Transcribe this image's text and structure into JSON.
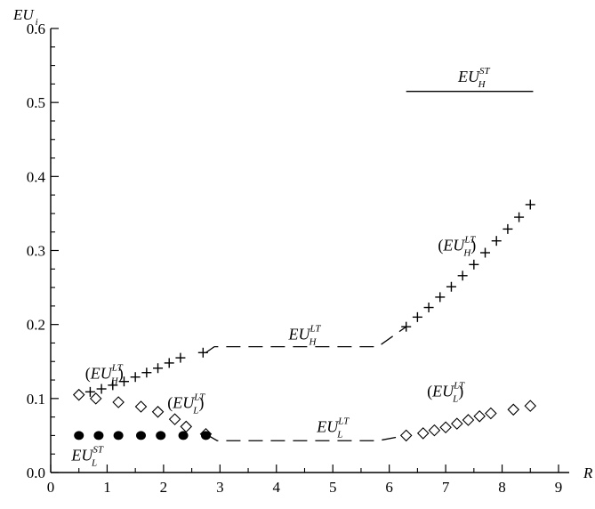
{
  "chart_data": {
    "type": "scatter",
    "xlabel": "R",
    "ylabel": "EU",
    "ylabel_sub": "i",
    "xlim": [
      0,
      9
    ],
    "ylim": [
      0,
      0.6
    ],
    "xticks": [
      "0",
      "1",
      "2",
      "3",
      "4",
      "5",
      "6",
      "7",
      "8",
      "9"
    ],
    "yticks": [
      "0.0",
      "0.1",
      "0.2",
      "0.3",
      "0.4",
      "0.5",
      "0.6"
    ],
    "grid": false,
    "series": [
      {
        "marker": "plus",
        "points": [
          [
            0.5,
            0.105
          ],
          [
            0.7,
            0.109
          ],
          [
            0.9,
            0.113
          ],
          [
            1.1,
            0.118
          ],
          [
            1.3,
            0.123
          ],
          [
            1.5,
            0.129
          ],
          [
            1.7,
            0.135
          ],
          [
            1.9,
            0.141
          ],
          [
            2.1,
            0.148
          ],
          [
            2.3,
            0.155
          ],
          [
            2.7,
            0.162
          ],
          [
            6.3,
            0.197
          ],
          [
            6.5,
            0.21
          ],
          [
            6.7,
            0.223
          ],
          [
            6.9,
            0.237
          ],
          [
            7.1,
            0.251
          ],
          [
            7.3,
            0.266
          ],
          [
            7.5,
            0.281
          ],
          [
            7.7,
            0.297
          ],
          [
            7.9,
            0.313
          ],
          [
            8.1,
            0.329
          ],
          [
            8.3,
            0.345
          ],
          [
            8.5,
            0.362
          ]
        ]
      },
      {
        "marker": "diamond",
        "points": [
          [
            0.5,
            0.105
          ],
          [
            0.8,
            0.1
          ],
          [
            1.2,
            0.095
          ],
          [
            1.6,
            0.089
          ],
          [
            1.9,
            0.082
          ],
          [
            2.2,
            0.072
          ],
          [
            2.4,
            0.062
          ],
          [
            2.75,
            0.052
          ],
          [
            6.3,
            0.05
          ],
          [
            6.6,
            0.053
          ],
          [
            6.8,
            0.057
          ],
          [
            7.0,
            0.061
          ],
          [
            7.2,
            0.066
          ],
          [
            7.4,
            0.071
          ],
          [
            7.6,
            0.076
          ],
          [
            7.8,
            0.08
          ],
          [
            8.2,
            0.085
          ],
          [
            8.5,
            0.09
          ]
        ]
      },
      {
        "marker": "dot",
        "points": [
          [
            0.5,
            0.05
          ],
          [
            0.85,
            0.05
          ],
          [
            1.2,
            0.05
          ],
          [
            1.6,
            0.05
          ],
          [
            1.95,
            0.05
          ],
          [
            2.35,
            0.05
          ],
          [
            2.75,
            0.05
          ]
        ]
      },
      {
        "style": "dashed",
        "points": [
          [
            2.75,
            0.162
          ],
          [
            2.9,
            0.17
          ],
          [
            5.8,
            0.17
          ],
          [
            6.3,
            0.197
          ]
        ]
      },
      {
        "style": "dashed",
        "points": [
          [
            2.75,
            0.052
          ],
          [
            2.95,
            0.043
          ],
          [
            5.8,
            0.043
          ],
          [
            6.3,
            0.05
          ]
        ]
      },
      {
        "style": "solid",
        "points": [
          [
            6.3,
            0.515
          ],
          [
            8.55,
            0.515
          ]
        ]
      }
    ],
    "annotations": [
      {
        "base": "EU",
        "sub": "H",
        "sup": "ST",
        "paren": false,
        "x": 7.5,
        "y": 0.528
      },
      {
        "base": "EU",
        "sub": "H",
        "sup": "LT",
        "paren": true,
        "x": 7.2,
        "y": 0.3
      },
      {
        "base": "EU",
        "sub": "H",
        "sup": "LT",
        "paren": false,
        "x": 4.5,
        "y": 0.18
      },
      {
        "base": "EU",
        "sub": "H",
        "sup": "LT",
        "paren": true,
        "x": 0.95,
        "y": 0.127
      },
      {
        "base": "EU",
        "sub": "L",
        "sup": "LT",
        "paren": true,
        "x": 2.4,
        "y": 0.087
      },
      {
        "base": "EU",
        "sub": "L",
        "sup": "LT",
        "paren": false,
        "x": 5.0,
        "y": 0.055
      },
      {
        "base": "EU",
        "sub": "L",
        "sup": "LT",
        "paren": true,
        "x": 7.0,
        "y": 0.103
      },
      {
        "base": "EU",
        "sub": "L",
        "sup": "ST",
        "paren": false,
        "x": 0.65,
        "y": 0.016
      }
    ]
  }
}
